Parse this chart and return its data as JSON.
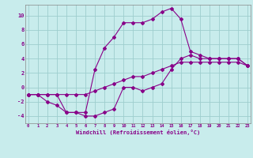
{
  "xlabel": "Windchill (Refroidissement éolien,°C)",
  "bg_color": "#c8ecec",
  "grid_color": "#9ecece",
  "line_color": "#880088",
  "hours": [
    0,
    1,
    2,
    3,
    4,
    5,
    6,
    7,
    8,
    9,
    10,
    11,
    12,
    13,
    14,
    15,
    16,
    17,
    18,
    19,
    20,
    21,
    22,
    23
  ],
  "line_windchill": [
    -1,
    -1,
    -2,
    -2.5,
    -3.5,
    -3.5,
    -3.5,
    2.5,
    5.5,
    7,
    9,
    9,
    9,
    9.5,
    10.5,
    11,
    9.5,
    5,
    4.5,
    4,
    4,
    4,
    4,
    3
  ],
  "line_feel": [
    -1,
    -1,
    -1,
    -1,
    -3.5,
    -3.5,
    -4,
    -4,
    -3.5,
    -3,
    0,
    0,
    -0.5,
    0,
    0.5,
    2.5,
    4,
    4.5,
    4,
    4,
    4,
    4,
    4,
    3
  ],
  "line_temp": [
    -1,
    -1,
    -1,
    -1,
    -1,
    -1,
    -1,
    -0.5,
    0,
    0.5,
    1,
    1.5,
    1.5,
    2,
    2.5,
    3,
    3.5,
    3.5,
    3.5,
    3.5,
    3.5,
    3.5,
    3.5,
    3
  ],
  "ylim": [
    -5,
    11.5
  ],
  "xlim": [
    -0.3,
    23.3
  ],
  "yticks": [
    -4,
    -2,
    0,
    2,
    4,
    6,
    8,
    10
  ],
  "xticks": [
    0,
    1,
    2,
    3,
    4,
    5,
    6,
    7,
    8,
    9,
    10,
    11,
    12,
    13,
    14,
    15,
    16,
    17,
    18,
    19,
    20,
    21,
    22,
    23
  ]
}
